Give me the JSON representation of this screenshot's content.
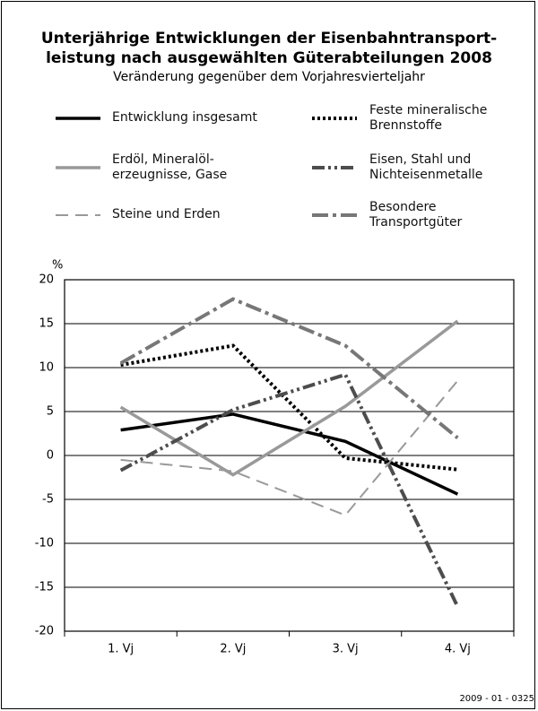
{
  "chart_data": {
    "type": "line",
    "title": "Unterjährige Entwicklungen der Eisenbahntransport-\nleistung nach ausgewählten Güterabteilungen 2008",
    "subtitle": "Veränderung gegenüber dem Vorjahresvierteljahr",
    "y_label": "%",
    "footer": "2009 - 01 - 0325",
    "categories": [
      "1. Vj",
      "2. Vj",
      "3. Vj",
      "4. Vj"
    ],
    "ylim": [
      -20,
      20
    ],
    "yticks": [
      -20,
      -15,
      -10,
      -5,
      0,
      5,
      10,
      15,
      20
    ],
    "grid": true,
    "series": [
      {
        "name": "Entwicklung insgesamt",
        "color": "#000000",
        "dash": "solid",
        "values": [
          2.9,
          4.7,
          1.6,
          -4.4
        ]
      },
      {
        "name": "Feste mineralische\nBrennstoffe",
        "color": "#000000",
        "dash": "dot",
        "values": [
          10.3,
          12.5,
          -0.3,
          -1.6
        ]
      },
      {
        "name": "Erdöl, Mineralöl-\nerzeugnisse, Gase",
        "color": "#999999",
        "dash": "solid",
        "values": [
          5.5,
          -2.2,
          5.6,
          15.3
        ]
      },
      {
        "name": "Eisen, Stahl und\nNichteisenmetalle",
        "color": "#4d4d4d",
        "dash": "dashdotdot",
        "values": [
          -1.7,
          5.2,
          9.2,
          -17.2
        ]
      },
      {
        "name": "Steine und Erden",
        "color": "#999999",
        "dash": "dash",
        "values": [
          -0.5,
          -1.8,
          -6.8,
          8.5
        ]
      },
      {
        "name": "Besondere\nTransportgüter",
        "color": "#777777",
        "dash": "dashdot",
        "values": [
          10.5,
          17.8,
          12.5,
          2.0
        ]
      }
    ]
  }
}
